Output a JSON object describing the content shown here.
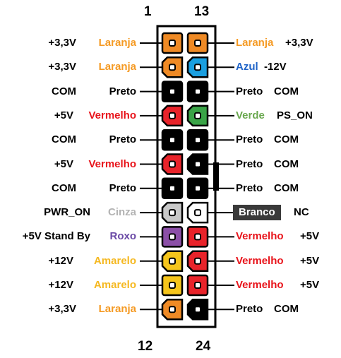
{
  "header": {
    "left_pin": "1",
    "right_pin": "13"
  },
  "footer": {
    "left_pin": "12",
    "right_pin": "24"
  },
  "colors": {
    "Laranja": "#ef8a25",
    "Azul": "#1a9fe0",
    "Preto": "#000000",
    "Vermelho": "#e8232a",
    "Verde": "#3aa447",
    "Cinza": "#c8c8c8",
    "Branco": "#ffffff",
    "Roxo": "#8b4fa7",
    "Amarelo": "#f5c51c"
  },
  "label_colors": {
    "Laranja": "#f59a23",
    "Azul": "#1e63c8",
    "Preto": "#000000",
    "Vermelho": "#e8141b",
    "Verde": "#6aa84f",
    "Cinza": "#b3b3b3",
    "Branco": "#ffffff",
    "Roxo": "#6b4aa6",
    "Amarelo": "#f5b820"
  },
  "left": [
    {
      "signal": "+3,3V",
      "color": "Laranja"
    },
    {
      "signal": "+3,3V",
      "color": "Laranja"
    },
    {
      "signal": "COM",
      "color": "Preto"
    },
    {
      "signal": "+5V",
      "color": "Vermelho"
    },
    {
      "signal": "COM",
      "color": "Preto"
    },
    {
      "signal": "+5V",
      "color": "Vermelho"
    },
    {
      "signal": "COM",
      "color": "Preto"
    },
    {
      "signal": "PWR_ON",
      "color": "Cinza"
    },
    {
      "signal": "+5V Stand By",
      "color": "Roxo"
    },
    {
      "signal": "+12V",
      "color": "Amarelo"
    },
    {
      "signal": "+12V",
      "color": "Amarelo"
    },
    {
      "signal": "+3,3V",
      "color": "Laranja"
    }
  ],
  "right": [
    {
      "signal": "+3,3V",
      "color": "Laranja"
    },
    {
      "signal": "-12V",
      "color": "Azul"
    },
    {
      "signal": "COM",
      "color": "Preto"
    },
    {
      "signal": "PS_ON",
      "color": "Verde"
    },
    {
      "signal": "COM",
      "color": "Preto"
    },
    {
      "signal": "COM",
      "color": "Preto"
    },
    {
      "signal": "COM",
      "color": "Preto"
    },
    {
      "signal": "NC",
      "color": "Branco"
    },
    {
      "signal": "+5V",
      "color": "Vermelho"
    },
    {
      "signal": "+5V",
      "color": "Vermelho"
    },
    {
      "signal": "+5V",
      "color": "Vermelho"
    },
    {
      "signal": "COM",
      "color": "Preto"
    }
  ]
}
